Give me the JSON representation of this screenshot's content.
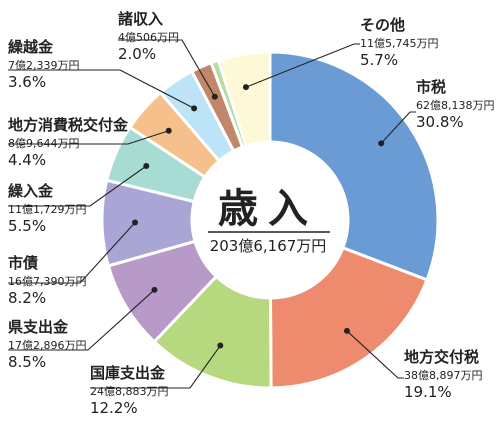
{
  "chart_data": {
    "type": "pie",
    "style": "donut",
    "title": "歳入",
    "total": "203億6,167万円",
    "slices": [
      {
        "name": "市税",
        "amount": "62億8,138万円",
        "percent": "30.8%",
        "value": 30.8,
        "color": "#6a9bd4"
      },
      {
        "name": "地方交付税",
        "amount": "38億8,897万円",
        "percent": "19.1%",
        "value": 19.1,
        "color": "#ee8a6e"
      },
      {
        "name": "国庫支出金",
        "amount": "24億8,883万円",
        "percent": "12.2%",
        "value": 12.2,
        "color": "#b6d87e"
      },
      {
        "name": "県支出金",
        "amount": "17億2,896万円",
        "percent": "8.5%",
        "value": 8.5,
        "color": "#b89ac8"
      },
      {
        "name": "市債",
        "amount": "16億7,390万円",
        "percent": "8.2%",
        "value": 8.2,
        "color": "#a9a6d6"
      },
      {
        "name": "繰入金",
        "amount": "11億1,729万円",
        "percent": "5.5%",
        "value": 5.5,
        "color": "#a6dcd4"
      },
      {
        "name": "地方消費税交付金",
        "amount": "8億9,644万円",
        "percent": "4.4%",
        "value": 4.4,
        "color": "#f6c08c"
      },
      {
        "name": "繰越金",
        "amount": "7億2,339万円",
        "percent": "3.6%",
        "value": 3.6,
        "color": "#bde3f6"
      },
      {
        "name": "諸収入",
        "amount": "4億506万円",
        "percent": "2.0%",
        "value": 2.0,
        "color": "#c2876a"
      },
      {
        "name": "その他",
        "amount": "11億5,745万円",
        "percent": "5.7%",
        "value": 5.7,
        "color": "#fdf9d6"
      }
    ],
    "extra_colors": {
      "small_green": "#b6dca2"
    }
  }
}
